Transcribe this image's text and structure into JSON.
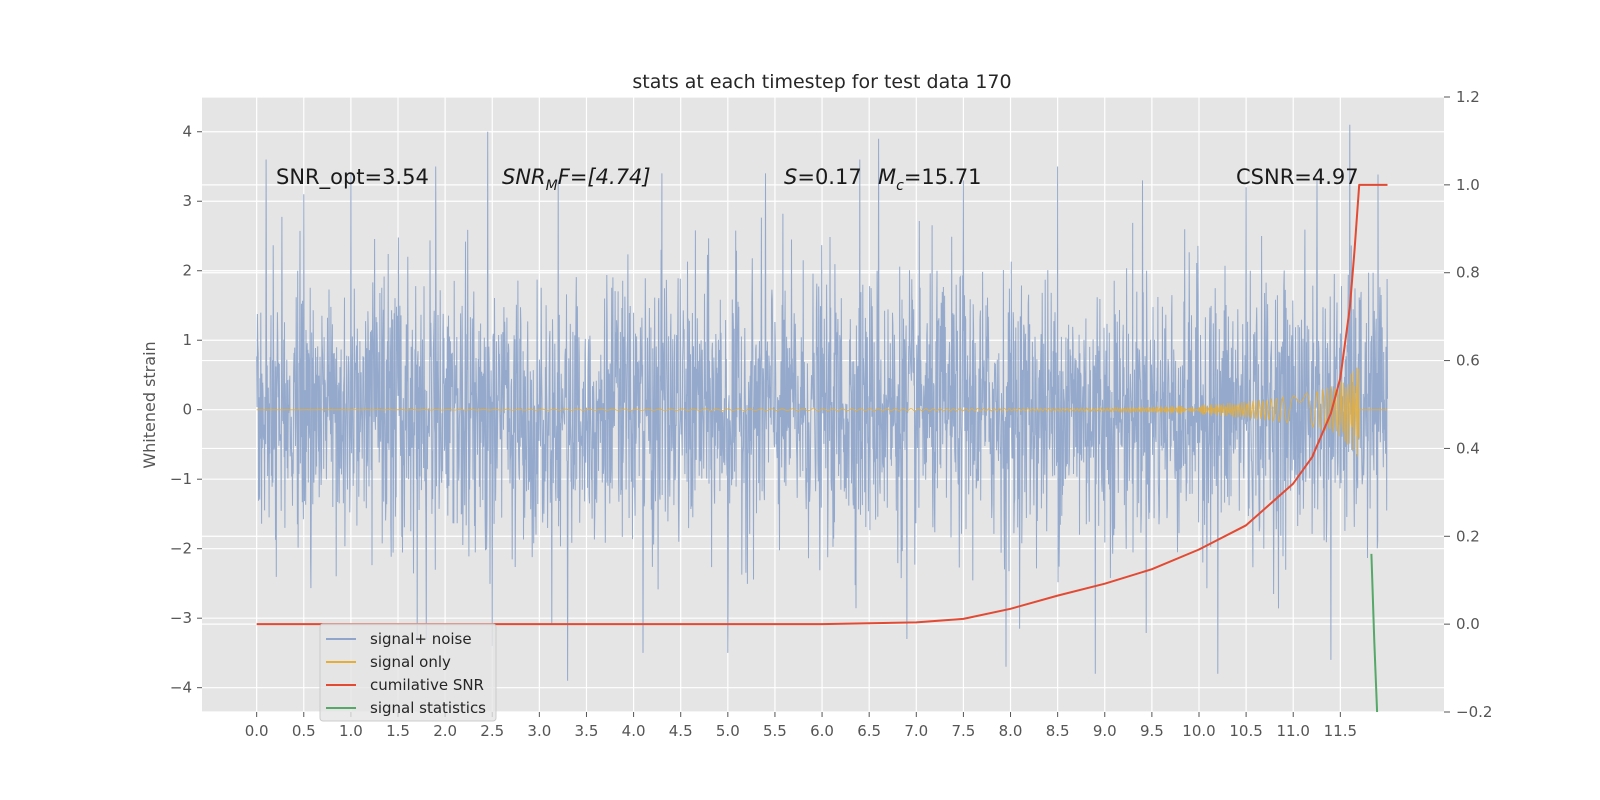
{
  "chart_data": {
    "type": "line",
    "title": "stats at each timestep for test data 170",
    "xlabel": "",
    "ylabel": "Whitened strain",
    "xlim": [
      -0.58,
      12.6
    ],
    "ylim": [
      -4.35,
      4.5
    ],
    "ylim_right": [
      -0.2,
      1.2
    ],
    "grid": true,
    "x_ticks": [
      "0.0",
      "0.5",
      "1.0",
      "1.5",
      "2.0",
      "2.5",
      "3.0",
      "3.5",
      "4.0",
      "4.5",
      "5.0",
      "5.5",
      "6.0",
      "6.5",
      "7.0",
      "7.5",
      "8.0",
      "8.5",
      "9.0",
      "9.5",
      "10.0",
      "10.5",
      "11.0",
      "11.5"
    ],
    "y_ticks": [
      "−4",
      "−3",
      "−2",
      "−1",
      "0",
      "1",
      "2",
      "3",
      "4"
    ],
    "y_ticks_right": [
      "−0.2",
      "0.0",
      "0.2",
      "0.4",
      "0.6",
      "0.8",
      "1.0",
      "1.2"
    ],
    "series": [
      {
        "name": "signal+ noise",
        "axis": "left",
        "color": "#8fa5ca",
        "x_range": [
          0,
          12.0
        ],
        "style": "dense whitened noise",
        "typical_band": [
          -1.9,
          1.9
        ],
        "peaks_upper": [
          [
            0.1,
            3.6
          ],
          [
            0.5,
            3.1
          ],
          [
            1.0,
            3.4
          ],
          [
            1.9,
            3.5
          ],
          [
            2.45,
            4.0
          ],
          [
            3.2,
            3.3
          ],
          [
            4.3,
            3.4
          ],
          [
            5.4,
            3.4
          ],
          [
            6.4,
            3.6
          ],
          [
            6.6,
            3.9
          ],
          [
            7.5,
            3.3
          ],
          [
            8.5,
            3.5
          ],
          [
            9.4,
            3.3
          ],
          [
            10.5,
            3.2
          ],
          [
            11.25,
            3.3
          ],
          [
            11.6,
            4.1
          ]
        ],
        "peaks_lower": [
          [
            1.8,
            -3.3
          ],
          [
            2.5,
            -3.4
          ],
          [
            3.3,
            -3.9
          ],
          [
            4.1,
            -3.5
          ],
          [
            5.0,
            -3.5
          ],
          [
            6.9,
            -3.3
          ],
          [
            7.95,
            -3.7
          ],
          [
            8.9,
            -3.8
          ],
          [
            10.2,
            -3.8
          ],
          [
            11.4,
            -3.6
          ]
        ]
      },
      {
        "name": "signal only",
        "axis": "left",
        "color": "#e5ae38",
        "x": [
          0.0,
          9.0,
          9.5,
          10.0,
          10.5,
          11.0,
          11.2,
          11.4,
          11.5,
          11.6,
          11.7
        ],
        "amplitude": [
          0.0,
          0.02,
          0.04,
          0.07,
          0.12,
          0.2,
          0.25,
          0.33,
          0.4,
          0.55,
          0.7
        ]
      },
      {
        "name": "cumilative SNR",
        "axis": "right",
        "color": "#e24a33",
        "x": [
          0.0,
          6.0,
          6.5,
          7.0,
          7.5,
          8.0,
          8.5,
          9.0,
          9.5,
          10.0,
          10.5,
          11.0,
          11.2,
          11.4,
          11.5,
          11.6,
          11.65,
          11.7,
          12.0
        ],
        "values": [
          0.0,
          0.0,
          0.002,
          0.004,
          0.012,
          0.035,
          0.065,
          0.092,
          0.125,
          0.17,
          0.225,
          0.32,
          0.38,
          0.48,
          0.56,
          0.72,
          0.85,
          1.0,
          1.0
        ]
      },
      {
        "name": "signal statistics",
        "axis": "right",
        "color": "#55a868",
        "x": [
          11.83,
          11.86,
          11.89
        ],
        "values": [
          0.16,
          -0.04,
          -0.2
        ]
      }
    ],
    "annotations": {
      "snr_opt": "SNR_opt=3.54",
      "snr_mf_symbol": "SNR",
      "snr_mf_subscript": "M",
      "snr_mf_rest": "F=[4.74]",
      "s_symbol": "S",
      "s_rest": "=0.17",
      "mc_symbol": "M",
      "mc_subscript": "c",
      "mc_rest": "=15.71",
      "csnr": "CSNR=4.97"
    },
    "legend": {
      "position": "lower-left",
      "entries": [
        "signal+ noise",
        "signal only",
        "cumilative SNR",
        "signal statistics"
      ]
    }
  }
}
